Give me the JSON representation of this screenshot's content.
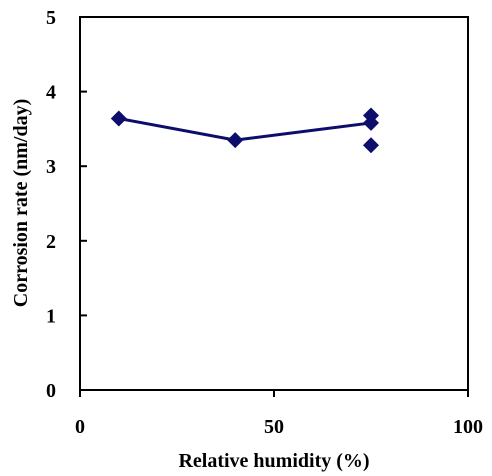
{
  "chart_data": {
    "type": "scatter",
    "title": "",
    "xlabel": "Relative humidity (%)",
    "ylabel": "Corrosion rate (nm/day)",
    "xlim": [
      0,
      100
    ],
    "ylim": [
      0,
      5
    ],
    "xticks": [
      0,
      50,
      100
    ],
    "yticks": [
      0,
      1,
      2,
      3,
      4,
      5
    ],
    "grid": false,
    "legend": "none",
    "colors": {
      "marker": "#0d0d6b",
      "line": "#0d0d6b",
      "axis": "#000000"
    },
    "series": [
      {
        "marker": "diamond",
        "points": [
          {
            "x": 10,
            "y": 3.64
          },
          {
            "x": 40,
            "y": 3.35
          },
          {
            "x": 75,
            "y": 3.68
          },
          {
            "x": 75,
            "y": 3.58
          },
          {
            "x": 75,
            "y": 3.28
          }
        ],
        "trend_line": [
          {
            "x": 10,
            "y": 3.64
          },
          {
            "x": 40,
            "y": 3.35
          },
          {
            "x": 75,
            "y": 3.58
          }
        ]
      }
    ]
  }
}
